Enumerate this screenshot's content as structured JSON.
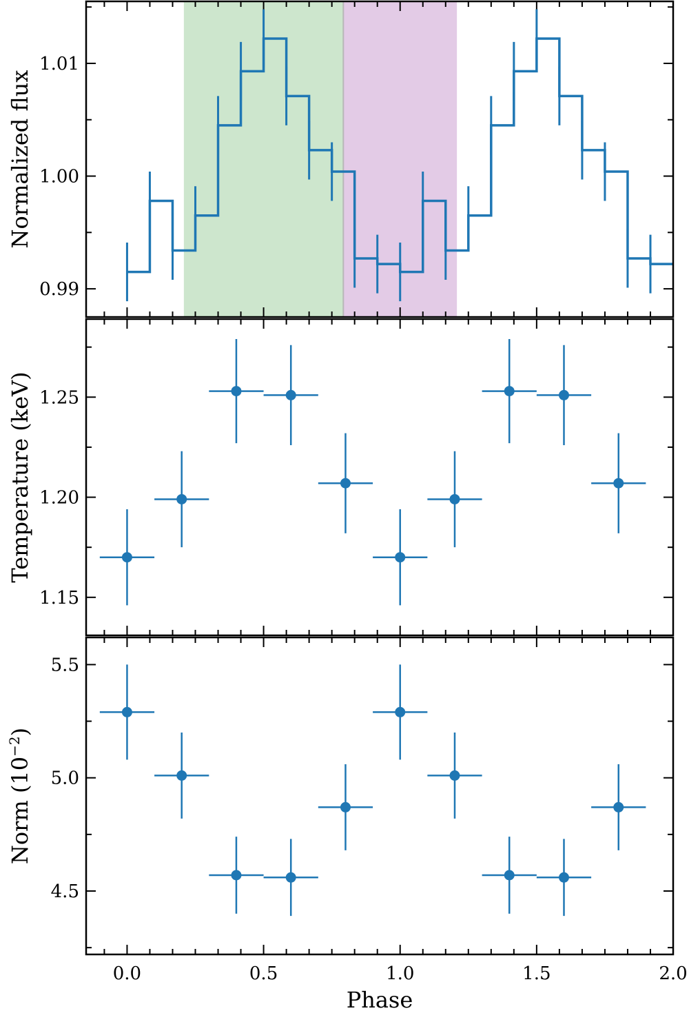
{
  "chart_data": [
    {
      "type": "line",
      "step": true,
      "ylabel": "Normalized flux",
      "xlim": [
        -0.15,
        2.0
      ],
      "ylim": [
        0.9875,
        1.0155
      ],
      "yticks": [
        0.99,
        1.0,
        1.01
      ],
      "ytick_labels": [
        "0.99",
        "1.00",
        "1.01"
      ],
      "x_bin_width": 0.0833,
      "series": [
        {
          "color": "#1f77b4",
          "x": [
            0.0,
            0.0833,
            0.1667,
            0.25,
            0.3333,
            0.4167,
            0.5,
            0.5833,
            0.6667,
            0.75,
            0.8333,
            0.9167,
            1.0,
            1.0833,
            1.1667,
            1.25,
            1.3333,
            1.4167,
            1.5,
            1.5833,
            1.6667,
            1.75,
            1.8333,
            1.9167
          ],
          "y": [
            0.9915,
            0.9978,
            0.9934,
            0.9965,
            1.0045,
            1.0093,
            1.0122,
            1.0071,
            1.0023,
            1.0004,
            0.9927,
            0.9922,
            0.9915,
            0.9978,
            0.9934,
            0.9965,
            1.0045,
            1.0093,
            1.0122,
            1.0071,
            1.0023,
            1.0004,
            0.9927,
            0.9922
          ],
          "yerr": [
            0.0026,
            0.0026,
            0.0026,
            0.0026,
            0.0026,
            0.0026,
            0.0026,
            0.0026,
            0.0026,
            0.0026,
            0.0026,
            0.0026,
            0.0026,
            0.0026,
            0.0026,
            0.0026,
            0.0026,
            0.0026,
            0.0026,
            0.0026,
            0.0026,
            0.0026,
            0.0026,
            0.0026
          ]
        }
      ],
      "shaded_regions": [
        {
          "x0": 0.208,
          "x1": 0.792,
          "color": "#cde6cd"
        },
        {
          "x0": 0.792,
          "x1": 1.208,
          "color": "#e3cbe6"
        }
      ]
    },
    {
      "type": "scatter",
      "ylabel": "Temperature (keV)",
      "xlim": [
        -0.15,
        2.0
      ],
      "ylim": [
        1.131,
        1.289
      ],
      "yticks": [
        1.15,
        1.2,
        1.25
      ],
      "ytick_labels": [
        "1.15",
        "1.20",
        "1.25"
      ],
      "series": [
        {
          "color": "#1f77b4",
          "x": [
            0.0,
            0.2,
            0.4,
            0.6,
            0.8,
            1.0,
            1.2,
            1.4,
            1.6,
            1.8
          ],
          "xerr": [
            0.1,
            0.1,
            0.1,
            0.1,
            0.1,
            0.1,
            0.1,
            0.1,
            0.1,
            0.1
          ],
          "y": [
            1.17,
            1.199,
            1.253,
            1.251,
            1.207,
            1.17,
            1.199,
            1.253,
            1.251,
            1.207
          ],
          "yerr": [
            0.024,
            0.024,
            0.026,
            0.025,
            0.025,
            0.024,
            0.024,
            0.026,
            0.025,
            0.025
          ]
        }
      ]
    },
    {
      "type": "scatter",
      "xlabel": "Phase",
      "ylabel": "Norm (10",
      "ylabel_superscript": "−2",
      "ylabel_suffix": ")",
      "xlim": [
        -0.15,
        2.0
      ],
      "xticks": [
        0.0,
        0.5,
        1.0,
        1.5,
        2.0
      ],
      "xtick_labels": [
        "0.0",
        "0.5",
        "1.0",
        "1.5",
        "2.0"
      ],
      "ylim": [
        4.22,
        5.62
      ],
      "yticks": [
        4.5,
        5.0,
        5.5
      ],
      "ytick_labels": [
        "4.5",
        "5.0",
        "5.5"
      ],
      "series": [
        {
          "color": "#1f77b4",
          "x": [
            0.0,
            0.2,
            0.4,
            0.6,
            0.8,
            1.0,
            1.2,
            1.4,
            1.6,
            1.8
          ],
          "xerr": [
            0.1,
            0.1,
            0.1,
            0.1,
            0.1,
            0.1,
            0.1,
            0.1,
            0.1,
            0.1
          ],
          "y": [
            5.29,
            5.01,
            4.57,
            4.56,
            4.87,
            5.29,
            5.01,
            4.57,
            4.56,
            4.87
          ],
          "yerr": [
            0.21,
            0.19,
            0.17,
            0.17,
            0.19,
            0.21,
            0.19,
            0.17,
            0.17,
            0.19
          ]
        }
      ]
    }
  ]
}
